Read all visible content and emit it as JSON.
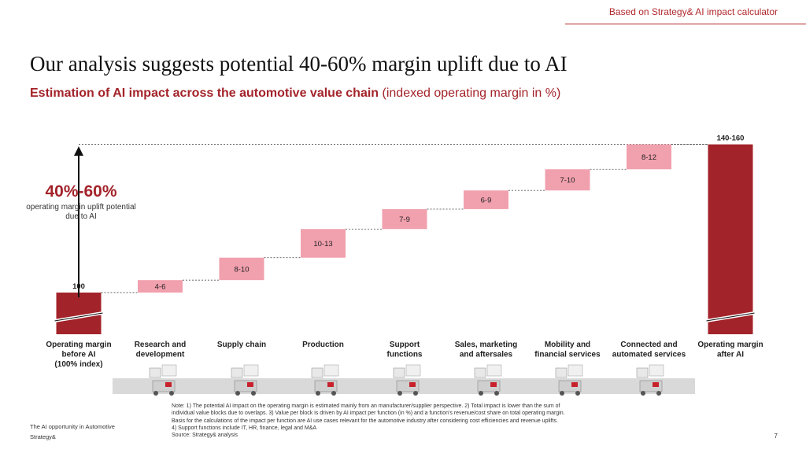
{
  "header": {
    "source_label": "Based on Strategy& AI impact calculator"
  },
  "title": "Our analysis suggests potential 40-60% margin uplift due to AI",
  "subtitle": {
    "bold": "Estimation of AI impact across the automotive value chain",
    "normal": " (indexed operating margin in %)"
  },
  "uplift_note": {
    "value": "40%-60%",
    "label": "operating margin uplift potential due to AI"
  },
  "colors": {
    "accent": "#a3232a",
    "total_bar": "#a3232a",
    "step_bar": "#f1a0ae",
    "band": "#d9d9d9"
  },
  "chart_data": {
    "type": "waterfall",
    "title": "Estimation of AI impact across the automotive value chain",
    "ylabel": "indexed operating margin in %",
    "ylim": [
      0,
      160
    ],
    "axis_broken": true,
    "categories": [
      "Operating margin before AI (100% index)",
      "Research and development",
      "Supply chain",
      "Production",
      "Support functions",
      "Sales, marketing and aftersales",
      "Mobility and financial services",
      "Connected and automated services",
      "Operating margin after AI"
    ],
    "category_label_lines": [
      [
        "Operating margin",
        "before AI",
        "(100% index)"
      ],
      [
        "Research and",
        "development"
      ],
      [
        "Supply chain"
      ],
      [
        "Production"
      ],
      [
        "Support",
        "functions"
      ],
      [
        "Sales, marketing",
        "and aftersales"
      ],
      [
        "Mobility and",
        "financial services"
      ],
      [
        "Connected and",
        "automated services"
      ],
      [
        "Operating margin",
        "after AI"
      ]
    ],
    "bars": [
      {
        "kind": "total",
        "start": 0,
        "end": 100,
        "label": "100"
      },
      {
        "kind": "step",
        "start": 100,
        "end": 105,
        "label": "4-6"
      },
      {
        "kind": "step",
        "start": 105,
        "end": 114,
        "label": "8-10"
      },
      {
        "kind": "step",
        "start": 114,
        "end": 125.5,
        "label": "10-13"
      },
      {
        "kind": "step",
        "start": 125.5,
        "end": 133.5,
        "label": "7-9"
      },
      {
        "kind": "step",
        "start": 133.5,
        "end": 141,
        "label": "6-9"
      },
      {
        "kind": "step",
        "start": 141,
        "end": 149.5,
        "label": "7-10"
      },
      {
        "kind": "step",
        "start": 149.5,
        "end": 159.5,
        "label": "8-12"
      },
      {
        "kind": "total",
        "start": 0,
        "end": 159.5,
        "label": "140-160"
      }
    ]
  },
  "illustrations": [
    {
      "label": "research-and-development-illustration"
    },
    {
      "label": "supply-chain-illustration"
    },
    {
      "label": "production-illustration"
    },
    {
      "label": "support-functions-illustration"
    },
    {
      "label": "sales-marketing-illustration"
    },
    {
      "label": "mobility-financial-services-illustration"
    },
    {
      "label": "connected-automated-services-illustration"
    }
  ],
  "notes": {
    "lines": [
      "Note: 1) The potential AI impact on the operating margin is estimated mainly from an manufacturer/supplier perspective. 2) Total impact is lower than the sum of",
      "individual value blocks due to overlaps. 3) Value per block is driven by AI impact per function (in %) and a function's revenue/cost share on total operating margin.",
      "Basis for the calculations of the impact per function are AI use cases relevant for the automotive industry after considering cost efficiencies and revenue uplifts.",
      "4) Support functions include IT, HR, finance, legal and M&A",
      "Source: Strategy& analysis"
    ]
  },
  "footer": {
    "report_name": "The AI opportunity in Automotive",
    "brand": "Strategy&",
    "page_number": "7"
  }
}
